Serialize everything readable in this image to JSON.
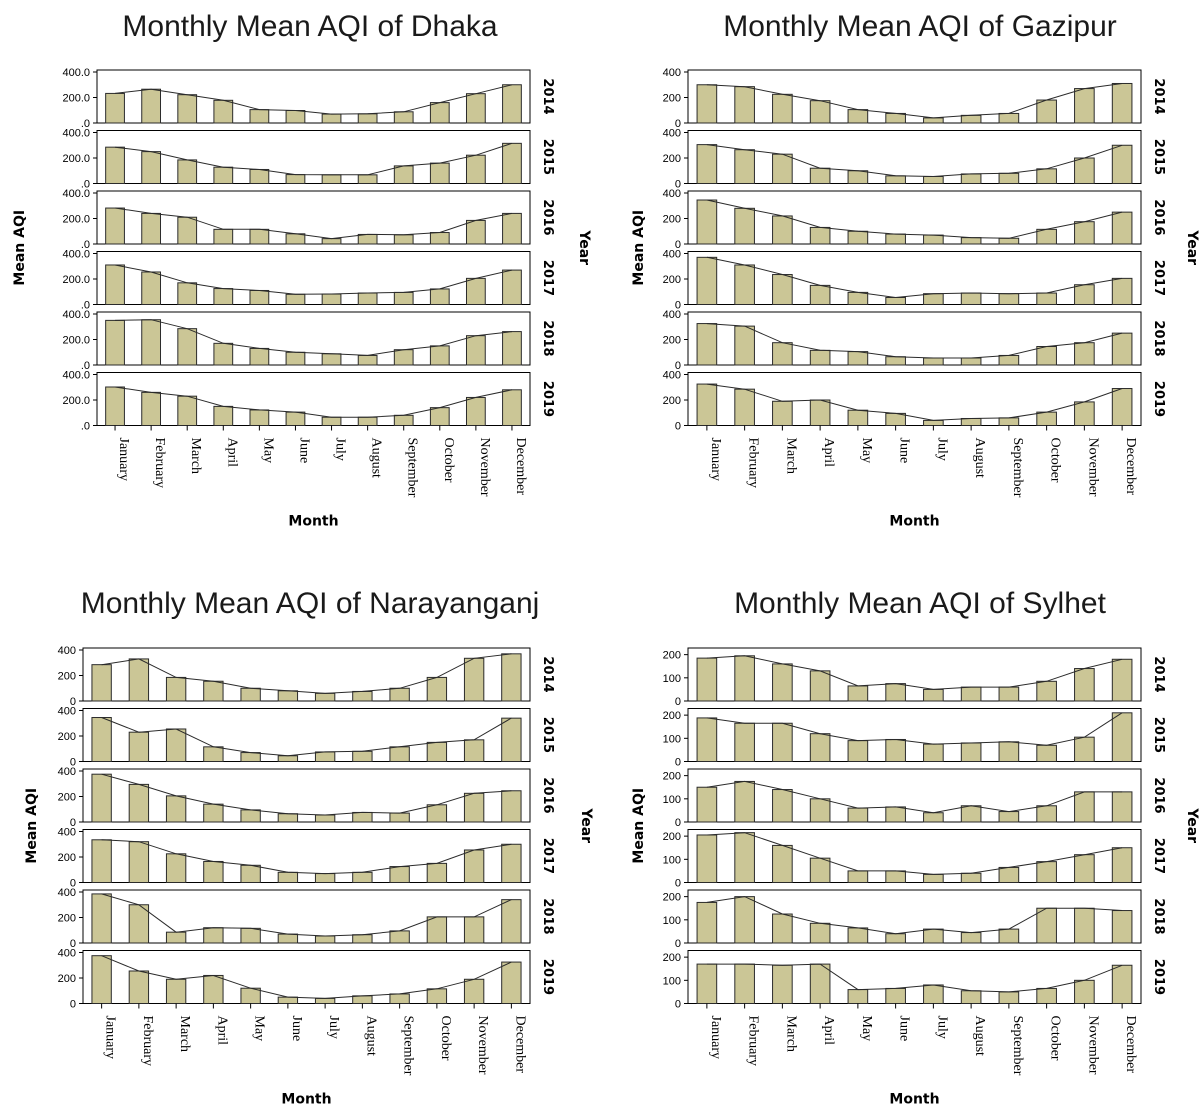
{
  "style": {
    "bar_fill": "#cbc696",
    "bar_stroke": "#2b2b2b",
    "line_color": "#2b2b2b",
    "axis_color": "#000000"
  },
  "chart_data": [
    {
      "type": "bar",
      "title": "Monthly Mean AQI of Dhaka",
      "xlabel": "Month",
      "ylabel": "Mean AQI",
      "facet_label": "Year",
      "categories": [
        "January",
        "February",
        "March",
        "April",
        "May",
        "June",
        "July",
        "August",
        "September",
        "October",
        "November",
        "December"
      ],
      "yticks": [
        ".0",
        "200.0",
        "400.0"
      ],
      "ylim": [
        0,
        400
      ],
      "overlay": "line connecting bar tops",
      "series": [
        {
          "name": "2014",
          "values": [
            232,
            265,
            222,
            178,
            105,
            98,
            70,
            72,
            88,
            160,
            230,
            300
          ]
        },
        {
          "name": "2015",
          "values": [
            285,
            250,
            185,
            128,
            110,
            70,
            68,
            68,
            138,
            160,
            222,
            315
          ]
        },
        {
          "name": "2016",
          "values": [
            282,
            240,
            210,
            115,
            115,
            80,
            42,
            75,
            72,
            90,
            185,
            240
          ]
        },
        {
          "name": "2017",
          "values": [
            310,
            255,
            170,
            125,
            110,
            80,
            82,
            90,
            95,
            122,
            205,
            270
          ]
        },
        {
          "name": "2018",
          "values": [
            350,
            355,
            285,
            170,
            130,
            100,
            88,
            75,
            120,
            150,
            230,
            262
          ]
        },
        {
          "name": "2019",
          "values": [
            302,
            260,
            230,
            150,
            122,
            105,
            65,
            65,
            80,
            140,
            220,
            280
          ]
        }
      ]
    },
    {
      "type": "bar",
      "title": "Monthly Mean AQI of Gazipur",
      "xlabel": "Month",
      "ylabel": "Mean AQI",
      "facet_label": "Year",
      "categories": [
        "January",
        "February",
        "March",
        "April",
        "May",
        "June",
        "July",
        "August",
        "September",
        "October",
        "November",
        "December"
      ],
      "yticks": [
        "0",
        "200",
        "400"
      ],
      "ylim": [
        0,
        400
      ],
      "overlay": "line connecting bar tops",
      "series": [
        {
          "name": "2014",
          "values": [
            300,
            285,
            225,
            175,
            105,
            75,
            40,
            60,
            75,
            180,
            270,
            310
          ]
        },
        {
          "name": "2015",
          "values": [
            305,
            265,
            230,
            120,
            100,
            60,
            55,
            75,
            80,
            115,
            200,
            300
          ]
        },
        {
          "name": "2016",
          "values": [
            345,
            280,
            220,
            130,
            100,
            78,
            70,
            50,
            45,
            115,
            175,
            250
          ]
        },
        {
          "name": "2017",
          "values": [
            370,
            310,
            235,
            150,
            95,
            55,
            85,
            90,
            85,
            90,
            155,
            205
          ]
        },
        {
          "name": "2018",
          "values": [
            325,
            305,
            175,
            115,
            105,
            65,
            55,
            55,
            75,
            145,
            175,
            250
          ]
        },
        {
          "name": "2019",
          "values": [
            325,
            285,
            190,
            200,
            120,
            95,
            40,
            55,
            60,
            105,
            185,
            290
          ]
        }
      ]
    },
    {
      "type": "bar",
      "title": "Monthly Mean AQI of Narayanganj",
      "xlabel": "Month",
      "ylabel": "Mean AQI",
      "facet_label": "Year",
      "categories": [
        "January",
        "February",
        "March",
        "April",
        "May",
        "June",
        "July",
        "August",
        "September",
        "October",
        "November",
        "December"
      ],
      "yticks": [
        "0",
        "200",
        "400"
      ],
      "ylim": [
        0,
        400
      ],
      "overlay": "line connecting bar tops",
      "series": [
        {
          "name": "2014",
          "values": [
            285,
            330,
            185,
            155,
            100,
            80,
            60,
            75,
            100,
            185,
            335,
            370
          ]
        },
        {
          "name": "2015",
          "values": [
            345,
            230,
            255,
            115,
            70,
            45,
            75,
            80,
            115,
            150,
            170,
            340
          ]
        },
        {
          "name": "2016",
          "values": [
            375,
            295,
            205,
            140,
            95,
            65,
            55,
            75,
            70,
            135,
            225,
            245
          ]
        },
        {
          "name": "2017",
          "values": [
            335,
            320,
            225,
            165,
            135,
            80,
            70,
            80,
            125,
            150,
            255,
            300
          ]
        },
        {
          "name": "2018",
          "values": [
            385,
            300,
            85,
            120,
            115,
            70,
            55,
            65,
            95,
            205,
            205,
            340
          ]
        },
        {
          "name": "2019",
          "values": [
            375,
            255,
            190,
            220,
            120,
            50,
            40,
            60,
            75,
            115,
            190,
            325
          ]
        }
      ]
    },
    {
      "type": "bar",
      "title": "Monthly Mean AQI of Sylhet",
      "xlabel": "Month",
      "ylabel": "Mean AQI",
      "facet_label": "Year",
      "categories": [
        "January",
        "February",
        "March",
        "April",
        "May",
        "June",
        "July",
        "August",
        "September",
        "October",
        "November",
        "December"
      ],
      "yticks": [
        "0",
        "100",
        "200"
      ],
      "ylim": [
        0,
        220
      ],
      "overlay": "line connecting bar tops",
      "series": [
        {
          "name": "2014",
          "values": [
            185,
            195,
            160,
            130,
            65,
            75,
            50,
            60,
            60,
            85,
            140,
            180
          ]
        },
        {
          "name": "2015",
          "values": [
            188,
            165,
            165,
            120,
            90,
            95,
            75,
            80,
            85,
            70,
            105,
            210
          ]
        },
        {
          "name": "2016",
          "values": [
            150,
            175,
            140,
            100,
            60,
            65,
            40,
            70,
            45,
            70,
            130,
            130
          ]
        },
        {
          "name": "2017",
          "values": [
            205,
            215,
            160,
            105,
            50,
            50,
            35,
            40,
            65,
            90,
            120,
            150
          ]
        },
        {
          "name": "2018",
          "values": [
            175,
            200,
            125,
            85,
            65,
            40,
            60,
            45,
            60,
            150,
            150,
            140
          ]
        },
        {
          "name": "2019",
          "values": [
            170,
            170,
            165,
            170,
            60,
            65,
            80,
            55,
            50,
            65,
            100,
            165
          ]
        }
      ]
    }
  ]
}
